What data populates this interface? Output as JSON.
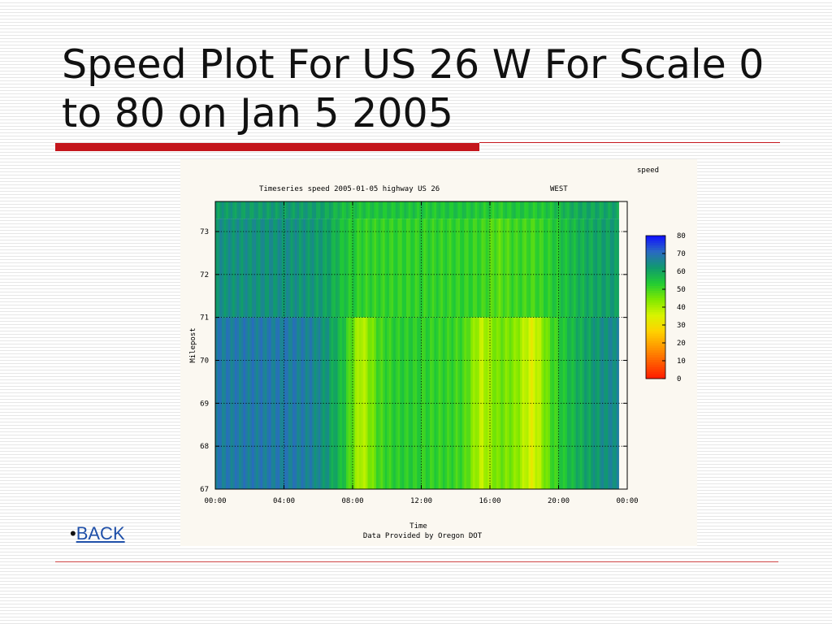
{
  "slide": {
    "title": "Speed Plot For US 26 W For Scale 0 to 80 on Jan 5 2005",
    "back_bullet": "•",
    "back_link": "BACK"
  },
  "chart_data": {
    "type": "heatmap",
    "title": "Timeseries speed 2005-01-05 highway US 26",
    "direction": "WEST",
    "colorbar_label": "speed",
    "xlabel": "Time",
    "ylabel": "Milepost",
    "footer": "Data Provided by Oregon DOT",
    "x_tick_labels": [
      "00:00",
      "04:00",
      "08:00",
      "12:00",
      "16:00",
      "20:00",
      "00:00"
    ],
    "xlim_hours": [
      0,
      24
    ],
    "y_ticks": [
      67,
      68,
      69,
      70,
      71,
      72,
      73
    ],
    "ylim": [
      67,
      73.7
    ],
    "colorbar_ticks": [
      0,
      10,
      20,
      30,
      40,
      50,
      60,
      70,
      80
    ],
    "colorbar_colors": [
      "#ff1a00",
      "#ff5a00",
      "#ff9900",
      "#ffd200",
      "#d8f400",
      "#7fe800",
      "#22cc33",
      "#109a6e",
      "#2a6ac2",
      "#1010ff"
    ],
    "data_end_hour": 23.5,
    "grid": true,
    "segments": [
      {
        "milepost_start": 73.3,
        "milepost_end": 73.7,
        "speed_by_hour": [
          62,
          62,
          62,
          62,
          62,
          62,
          60,
          56,
          55,
          55,
          55,
          55,
          54,
          55,
          55,
          54,
          53,
          55,
          54,
          55,
          58,
          60,
          60,
          61
        ]
      },
      {
        "milepost_start": 71.0,
        "milepost_end": 73.3,
        "speed_by_hour": [
          64,
          64,
          64,
          64,
          64,
          63,
          61,
          55,
          52,
          52,
          52,
          52,
          52,
          52,
          52,
          51,
          48,
          51,
          50,
          53,
          56,
          59,
          61,
          62
        ]
      },
      {
        "milepost_start": 67.0,
        "milepost_end": 71.0,
        "speed_by_hour": [
          68,
          68,
          68,
          68,
          68,
          67,
          63,
          55,
          38,
          50,
          53,
          53,
          52,
          52,
          50,
          38,
          46,
          44,
          34,
          49,
          56,
          60,
          64,
          66
        ]
      }
    ]
  }
}
